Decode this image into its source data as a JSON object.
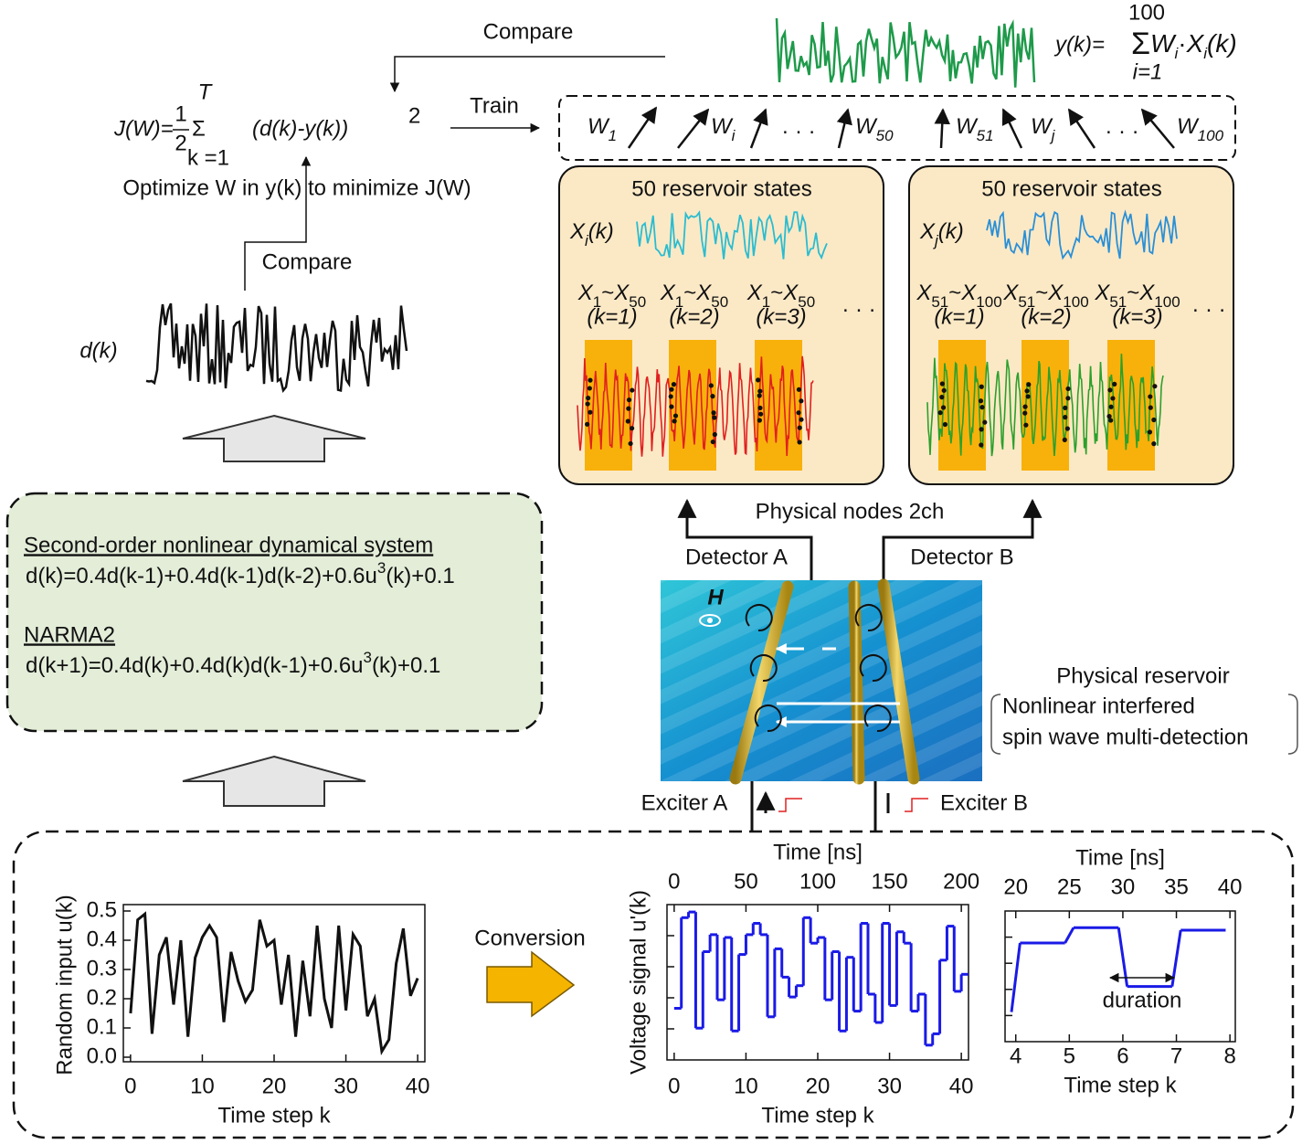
{
  "feedback": {
    "compare_top": "Compare",
    "compare_left": "Compare",
    "train": "Train",
    "optimize": "Optimize W in y(k) to minimize J(W)"
  },
  "cost_function": {
    "lhs": "J(W)=",
    "numerator": "1",
    "denominator": "2",
    "sum": "Σ",
    "body": "(d(k)-y(k))",
    "power": "2",
    "upper": "T",
    "lower": "k =1"
  },
  "output_function": {
    "lhs": "y(k)=",
    "sum": "Σ",
    "weight": "W",
    "weight_index": "i",
    "operator": "·",
    "state": "X",
    "state_index": "i",
    "arg": "(k)",
    "upper": "100",
    "lower": "i=1"
  },
  "weights": {
    "symbol": "W",
    "indices": [
      "1",
      "i",
      "50",
      "51",
      "j",
      "100"
    ],
    "ellipsis": "· · ·"
  },
  "target": {
    "label": "d(k)"
  },
  "reservoir_panels": [
    {
      "title": "50 reservoir states",
      "state": {
        "symbol": "X",
        "index": "i",
        "arg": "(k)"
      },
      "ellipsis": "· · ·",
      "groups": [
        {
          "from": "X",
          "from_index": "1",
          "sep": "~",
          "to": "X",
          "to_index": "50",
          "step": "(k=1)"
        },
        {
          "from": "X",
          "from_index": "1",
          "sep": "~",
          "to": "X",
          "to_index": "50",
          "step": "(k=2)"
        },
        {
          "from": "X",
          "from_index": "1",
          "sep": "~",
          "to": "X",
          "to_index": "50",
          "step": "(k=3)"
        }
      ]
    },
    {
      "title": "50 reservoir states",
      "state": {
        "symbol": "X",
        "index": "j",
        "arg": "(k)"
      },
      "ellipsis": "· · ·",
      "groups": [
        {
          "from": "X",
          "from_index": "51",
          "sep": "~",
          "to": "X",
          "to_index": "100",
          "step": "(k=1)"
        },
        {
          "from": "X",
          "from_index": "51",
          "sep": "~",
          "to": "X",
          "to_index": "100",
          "step": "(k=2)"
        },
        {
          "from": "X",
          "from_index": "51",
          "sep": "~",
          "to": "X",
          "to_index": "100",
          "step": "(k=3)"
        }
      ]
    }
  ],
  "task_box": {
    "system_title": "Second-order nonlinear dynamical system",
    "system_eq": {
      "pre": "d(k)=0.4d(k-1)+0.4d(k-1)d(k-2)+0.6u",
      "sup": "3",
      "post": "(k)+0.1"
    },
    "narma_title": "NARMA2",
    "narma_eq": {
      "pre": "d(k+1)=0.4d(k)+0.4d(k)d(k-1)+0.6u",
      "sup": "3",
      "post": "(k)+0.1"
    }
  },
  "physical": {
    "nodes": "Physical nodes 2ch",
    "detector_a": "Detector A",
    "detector_b": "Detector B",
    "exciter_a": "Exciter A",
    "exciter_b": "Exciter B",
    "field": "H",
    "title": "Physical reservoir",
    "description": [
      "Nonlinear interfered",
      "spin wave multi-detection"
    ]
  },
  "conversion": "Conversion",
  "input_chart": {
    "type": "line",
    "ylabel": "Random input u(k)",
    "xlabel": "Time step k",
    "color": "#111111",
    "x": [
      0,
      1,
      2,
      3,
      4,
      5,
      6,
      7,
      8,
      9,
      10,
      11,
      12,
      13,
      14,
      15,
      16,
      17,
      18,
      19,
      20,
      21,
      22,
      23,
      24,
      25,
      26,
      27,
      28,
      29,
      30,
      31,
      32,
      33,
      34,
      35,
      36,
      37,
      38,
      39,
      40
    ],
    "values": [
      0.15,
      0.47,
      0.49,
      0.08,
      0.35,
      0.41,
      0.18,
      0.4,
      0.07,
      0.34,
      0.41,
      0.45,
      0.41,
      0.12,
      0.36,
      0.26,
      0.19,
      0.23,
      0.47,
      0.38,
      0.4,
      0.18,
      0.35,
      0.07,
      0.33,
      0.14,
      0.45,
      0.2,
      0.1,
      0.45,
      0.16,
      0.42,
      0.38,
      0.14,
      0.2,
      0.02,
      0.06,
      0.32,
      0.44,
      0.21,
      0.27
    ],
    "xlim": [
      -1,
      41
    ],
    "ylim": [
      0,
      0.5
    ],
    "xticks": [
      0,
      10,
      20,
      30,
      40
    ],
    "yticks": [
      {
        "value": 0,
        "label": "0.0"
      },
      0.1,
      0.2,
      0.3,
      0.4,
      0.5
    ]
  },
  "voltage_chart": {
    "type": "step",
    "ylabel": "Voltage signal u'(k)",
    "xlabel": "Time step k",
    "x2label": "Time [ns]",
    "color": "#1a1ae6",
    "xlim": [
      -1,
      41
    ],
    "xticks": [
      0,
      10,
      20,
      30,
      40
    ],
    "x2lim": [
      -5,
      205
    ],
    "x2ticks": [
      0,
      50,
      100,
      150,
      200
    ]
  },
  "zoom_chart": {
    "type": "step",
    "xlabel": "Time step k",
    "x2label": "Time [ns]",
    "annotation": "duration",
    "color": "#1a1ae6",
    "xlim": [
      3.8,
      8.1
    ],
    "xticks": [
      4,
      5,
      6,
      7,
      8
    ],
    "x2lim": [
      19,
      40.5
    ],
    "x2ticks": [
      20,
      25,
      30,
      35,
      40
    ]
  }
}
